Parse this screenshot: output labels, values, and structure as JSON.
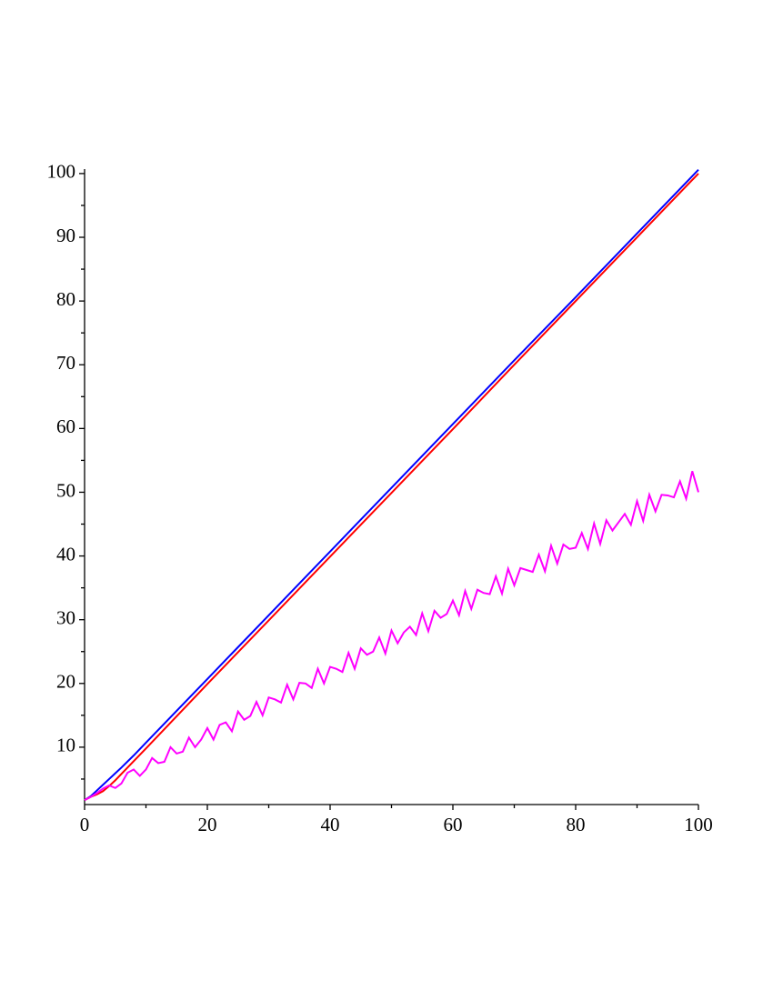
{
  "chart_data": {
    "type": "line",
    "xlim": [
      0,
      100
    ],
    "ylim": [
      1,
      100.7
    ],
    "xticks": [
      0,
      20,
      40,
      60,
      80,
      100
    ],
    "xminorticks": [
      10,
      30,
      50,
      70,
      90
    ],
    "yticks": [
      10,
      20,
      30,
      40,
      50,
      60,
      70,
      80,
      90,
      100
    ],
    "yminorticks": [
      5,
      15,
      25,
      35,
      45,
      55,
      65,
      75,
      85,
      95
    ],
    "grid": false,
    "series": [
      {
        "color": "#0000ff",
        "x": [
          0,
          1,
          2,
          3,
          4,
          5,
          6,
          8,
          10,
          20,
          30,
          40,
          50,
          60,
          70,
          80,
          90,
          100
        ],
        "values": [
          1.7,
          2.3,
          3.2,
          4.1,
          5.0,
          5.9,
          6.8,
          8.7,
          10.7,
          20.7,
          30.7,
          40.7,
          50.7,
          60.7,
          70.7,
          80.6,
          90.6,
          100.6
        ]
      },
      {
        "color": "#ff0000",
        "x": [
          0,
          1,
          2,
          3,
          4,
          5,
          6,
          8,
          10,
          20,
          30,
          40,
          50,
          60,
          70,
          80,
          90,
          100
        ],
        "values": [
          1.7,
          2.2,
          2.6,
          3.1,
          3.9,
          4.8,
          5.8,
          7.8,
          9.8,
          19.9,
          29.9,
          39.9,
          49.9,
          59.9,
          70.0,
          80.0,
          90.0,
          100.0
        ]
      },
      {
        "color": "#ff00ff",
        "x": [
          0,
          1,
          2,
          3,
          4,
          5,
          6,
          7,
          8,
          9,
          10,
          11,
          12,
          13,
          14,
          15,
          16,
          17,
          18,
          19,
          20,
          21,
          22,
          23,
          24,
          25,
          26,
          27,
          28,
          29,
          30,
          31,
          32,
          33,
          34,
          35,
          36,
          37,
          38,
          39,
          40,
          41,
          42,
          43,
          44,
          45,
          46,
          47,
          48,
          49,
          50,
          51,
          52,
          53,
          54,
          55,
          56,
          57,
          58,
          59,
          60,
          61,
          62,
          63,
          64,
          65,
          66,
          67,
          68,
          69,
          70,
          71,
          72,
          73,
          74,
          75,
          76,
          77,
          78,
          79,
          80,
          81,
          82,
          83,
          84,
          85,
          86,
          87,
          88,
          89,
          90,
          91,
          92,
          93,
          94,
          95,
          96,
          97,
          98,
          99,
          100
        ],
        "values": [
          1.7,
          2.2,
          2.8,
          3.5,
          4.0,
          3.6,
          4.3,
          6.0,
          6.5,
          5.5,
          6.5,
          8.3,
          7.5,
          7.7,
          10.0,
          9.0,
          9.3,
          11.5,
          10.0,
          11.2,
          13.0,
          11.2,
          13.5,
          13.9,
          12.5,
          15.6,
          14.3,
          14.9,
          17.1,
          15.0,
          17.8,
          17.5,
          17.0,
          19.8,
          17.5,
          20.1,
          20.0,
          19.3,
          22.3,
          20.0,
          22.6,
          22.3,
          21.8,
          24.8,
          22.3,
          25.5,
          24.5,
          25.0,
          27.2,
          24.7,
          28.3,
          26.3,
          28.0,
          28.9,
          27.6,
          31.0,
          28.2,
          31.4,
          30.3,
          30.9,
          33.0,
          30.7,
          34.5,
          31.7,
          34.7,
          34.2,
          34.0,
          36.8,
          34.1,
          38.0,
          35.4,
          38.1,
          37.8,
          37.5,
          40.2,
          37.6,
          41.6,
          38.8,
          41.8,
          41.1,
          41.3,
          43.6,
          41.1,
          45.1,
          41.9,
          45.6,
          44.0,
          45.3,
          46.6,
          44.9,
          48.6,
          45.5,
          49.6,
          47.0,
          49.6,
          49.5,
          49.2,
          51.7,
          49.0,
          53.3,
          50.0
        ]
      }
    ]
  }
}
